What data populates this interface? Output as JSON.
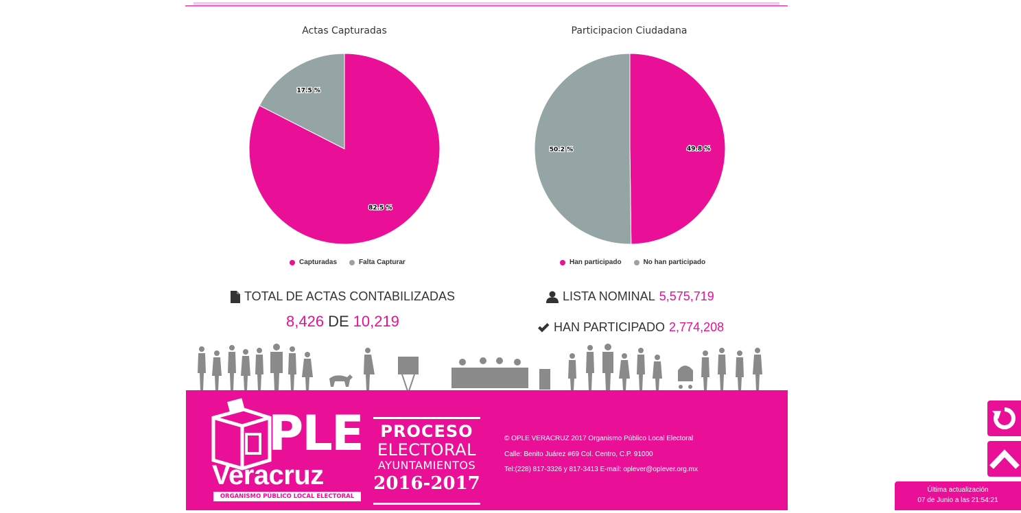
{
  "colors": {
    "accent": "#e91097",
    "gray": "#95a5a6",
    "text": "#333333"
  },
  "charts": {
    "actas_title": "Actas Capturadas",
    "participacion_title": "Participacion Ciudadana"
  },
  "chart_data": [
    {
      "type": "pie",
      "title": "Actas Capturadas",
      "labels": [
        "Capturadas",
        "Falta Capturar"
      ],
      "values": [
        82.5,
        17.5
      ],
      "value_labels": [
        "82.5 %",
        "17.5 %"
      ],
      "colors": [
        "#e91097",
        "#95a5a6"
      ],
      "legend_position": "bottom"
    },
    {
      "type": "pie",
      "title": "Participacion Ciudadana",
      "labels": [
        "Han participado",
        "No han participado"
      ],
      "values": [
        49.8,
        50.2
      ],
      "value_labels": [
        "49.8 %",
        "50.2 %"
      ],
      "colors": [
        "#e91097",
        "#95a5a6"
      ],
      "legend_position": "bottom"
    }
  ],
  "stats": {
    "total_actas_label": "TOTAL DE ACTAS CONTABILIZADAS",
    "actas_count": "8,426",
    "de_word": "DE",
    "actas_total": "10,219",
    "lista_nominal_label": "LISTA NOMINAL",
    "lista_nominal_value": "5,575,719",
    "han_participado_label": "HAN PARTICIPADO",
    "han_participado_value": "2,774,208"
  },
  "icons": {
    "document": "document-icon",
    "user": "user-icon",
    "check": "check-icon",
    "refresh": "refresh-icon",
    "up": "chevron-up-icon"
  },
  "footer": {
    "logo_ple": "PLE",
    "logo_veracruz": "Veracruz",
    "logo_org": "ORGANISMO PÚBLICO LOCAL ELECTORAL",
    "proceso_1": "PROCESO",
    "proceso_2": "ELECTORAL",
    "proceso_3": "AYUNTAMIENTOS",
    "proceso_4": "2016-2017",
    "copyright": "© OPLE VERACRUZ 2017 Organismo Público Local Electoral",
    "address": "Calle: Benito Juárez #69 Col. Centro, C.P. 91000",
    "contact": "Tel:(228) 817-3326 y 817-3413 E-mail: oplever@oplever.org.mx"
  },
  "update": {
    "label": "Última actualización",
    "datetime": "07 de Junio a las 21:54:21"
  }
}
